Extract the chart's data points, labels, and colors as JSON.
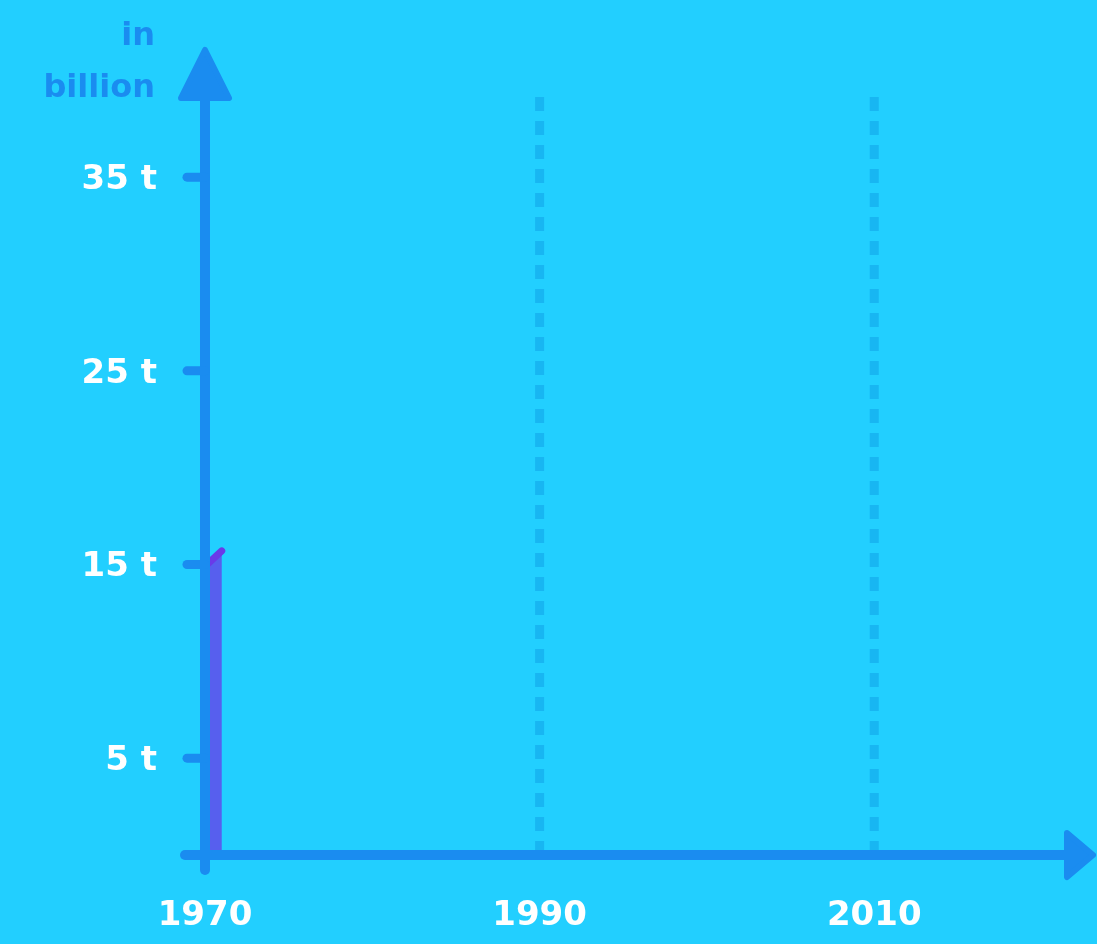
{
  "chart_data": {
    "type": "area",
    "ylabel": "in billion",
    "x": [
      1970,
      1971
    ],
    "series": [
      {
        "color": "#6a3ae8",
        "values": [
          14.9,
          15.7
        ]
      }
    ],
    "xlim": [
      1970,
      2022
    ],
    "ylim": [
      0,
      39.5
    ],
    "xticks": [
      1970,
      1990,
      2010
    ],
    "yticks": [
      {
        "value": 5,
        "label": "5 t"
      },
      {
        "value": 15,
        "label": "15 t"
      },
      {
        "value": 25,
        "label": "25 t"
      },
      {
        "value": 35,
        "label": "35 t"
      }
    ],
    "grid": "x"
  }
}
